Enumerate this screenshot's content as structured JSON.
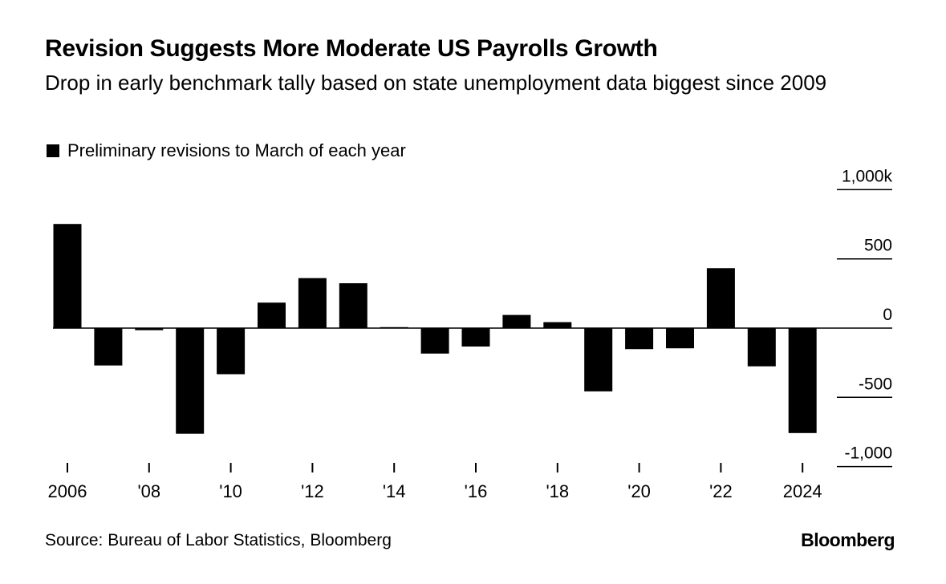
{
  "title": "Revision Suggests More Moderate US Payrolls Growth",
  "subtitle": "Drop in early benchmark tally based on state unemployment data biggest since 2009",
  "legend": {
    "label": "Preliminary revisions to March of each year",
    "color": "#000000"
  },
  "source": "Source: Bureau of Labor Statistics, Bloomberg",
  "brand": "Bloomberg",
  "chart_data": {
    "type": "bar",
    "title": "Revision Suggests More Moderate US Payrolls Growth",
    "subtitle": "Drop in early benchmark tally based on state unemployment data biggest since 2009",
    "xlabel": "",
    "ylabel": "",
    "ylim": [
      -1000,
      1000
    ],
    "y_ticks": [
      1000,
      500,
      0,
      -500,
      -1000
    ],
    "y_tick_labels": [
      "1,000k",
      "500",
      "0",
      "-500",
      "-1,000"
    ],
    "y_axis_side": "right",
    "grid": false,
    "legend_position": "top-left",
    "bar_color": "#000000",
    "categories": [
      "2006",
      "2007",
      "2008",
      "2009",
      "2010",
      "2011",
      "2012",
      "2013",
      "2014",
      "2015",
      "2016",
      "2017",
      "2018",
      "2019",
      "2020",
      "2021",
      "2022",
      "2023",
      "2024"
    ],
    "x_tick_labels": [
      "2006",
      "",
      "'08",
      "",
      "'10",
      "",
      "'12",
      "",
      "'14",
      "",
      "'16",
      "",
      "'18",
      "",
      "'20",
      "",
      "'22",
      "",
      "2024"
    ],
    "series": [
      {
        "name": "Preliminary revisions to March of each year",
        "values": [
          752,
          -270,
          -15,
          -763,
          -333,
          184,
          361,
          324,
          7,
          -184,
          -133,
          95,
          43,
          -457,
          -152,
          -146,
          433,
          -276,
          -758
        ]
      }
    ]
  }
}
